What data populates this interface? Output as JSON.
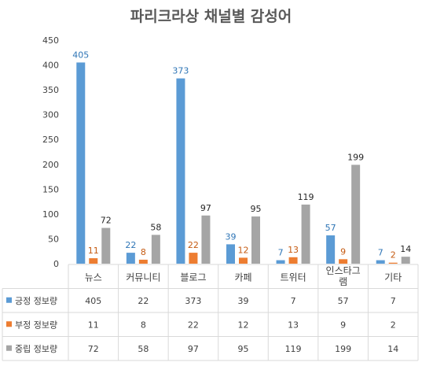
{
  "chart_data": {
    "type": "bar",
    "title": "파리크라상 채널별 감성어",
    "categories": [
      "뉴스",
      "커뮤니티",
      "블로그",
      "카페",
      "트위터",
      "인스타그램",
      "기타"
    ],
    "category_lines": [
      [
        "뉴스"
      ],
      [
        "커뮤니티"
      ],
      [
        "블로그"
      ],
      [
        "카페"
      ],
      [
        "트위터"
      ],
      [
        "인스타그",
        "램"
      ],
      [
        "기타"
      ]
    ],
    "series": [
      {
        "name": "긍정 정보량",
        "values": [
          405,
          22,
          373,
          39,
          7,
          57,
          7
        ],
        "color": "#5b9bd5",
        "label_color": "#2e75b6"
      },
      {
        "name": "부정 정보량",
        "values": [
          11,
          8,
          22,
          12,
          13,
          9,
          2
        ],
        "color": "#ed7d31",
        "label_color": "#c55a11"
      },
      {
        "name": "중립 정보량",
        "values": [
          72,
          58,
          97,
          95,
          119,
          199,
          14
        ],
        "color": "#a5a5a5",
        "label_color": "#262626"
      }
    ],
    "ylim": [
      0,
      450
    ],
    "yticks": [
      0,
      50,
      100,
      150,
      200,
      250,
      300,
      350,
      400,
      450
    ],
    "xlabel": "",
    "ylabel": "",
    "grid": false,
    "legend": "data-table"
  }
}
